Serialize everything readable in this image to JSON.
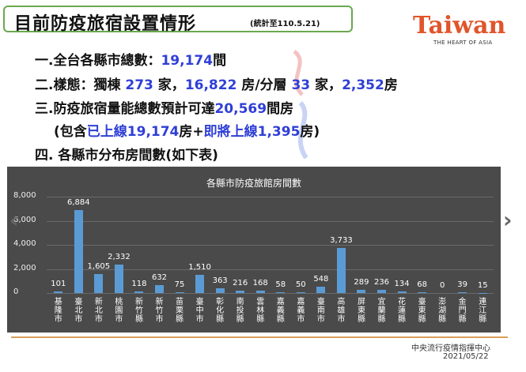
{
  "title": "目前防疫旅宿設置情形",
  "title_note": "(統計至110.5.21)",
  "logo": {
    "word": "Taiwan",
    "tagline": "THE HEART OF ASIA"
  },
  "lines": {
    "l1_pre": "一.全台各縣市總數：",
    "l1_num": "19,174",
    "l1_post": "間",
    "l2_pre": "二.樣態：獨棟 ",
    "l2_a": "273",
    "l2_b": " 家，",
    "l2_c": "16,822",
    "l2_d": " 房/分層 ",
    "l2_e": "33",
    "l2_f": " 家，",
    "l2_g": "2,352",
    "l2_h": "房",
    "l3_pre": "三.防疫旅宿量能總數預計可達",
    "l3_num": "20,569",
    "l3_post": "間房",
    "l4_a": "(包含",
    "l4_b": "已上線19,174",
    "l4_c": "房+",
    "l4_d": "即將上線1,395",
    "l4_e": "房)",
    "l5": "四. 各縣市分布房間數(如下表)"
  },
  "footer": {
    "org": "中央流行疫情指揮中心",
    "date": "2021/05/22"
  },
  "colors": {
    "bar": "#5b9bd5",
    "chart_bg": "#4a4a4a",
    "accent_blue": "#2f3fd6",
    "logo": "#e0552b"
  },
  "chart_data": {
    "type": "bar",
    "title": "各縣市防疫旅館房間數",
    "categories": [
      "基隆市",
      "臺北市",
      "新北市",
      "桃園市",
      "新竹縣",
      "新竹市",
      "苗栗縣",
      "臺中市",
      "彰化縣",
      "南投縣",
      "雲林縣",
      "嘉義縣",
      "嘉義市",
      "臺南市",
      "高雄市",
      "屏東縣",
      "宜蘭縣",
      "花蓮縣",
      "臺東縣",
      "澎湖縣",
      "金門縣",
      "連江縣"
    ],
    "values": [
      101,
      6884,
      1605,
      2332,
      118,
      632,
      75,
      1510,
      363,
      216,
      168,
      58,
      50,
      548,
      3733,
      289,
      236,
      134,
      68,
      0,
      39,
      15
    ],
    "value_labels": [
      "101",
      "6,884",
      "1,605",
      "2,332",
      "118",
      "632",
      "75",
      "1,510",
      "363",
      "216",
      "168",
      "58",
      "50",
      "548",
      "3,733",
      "289",
      "236",
      "134",
      "68",
      "0",
      "39",
      "15"
    ],
    "yticks": [
      "0",
      "2,000",
      "4,000",
      "6,000",
      "8,000"
    ],
    "ylim": [
      0,
      8000
    ],
    "grid": true
  }
}
